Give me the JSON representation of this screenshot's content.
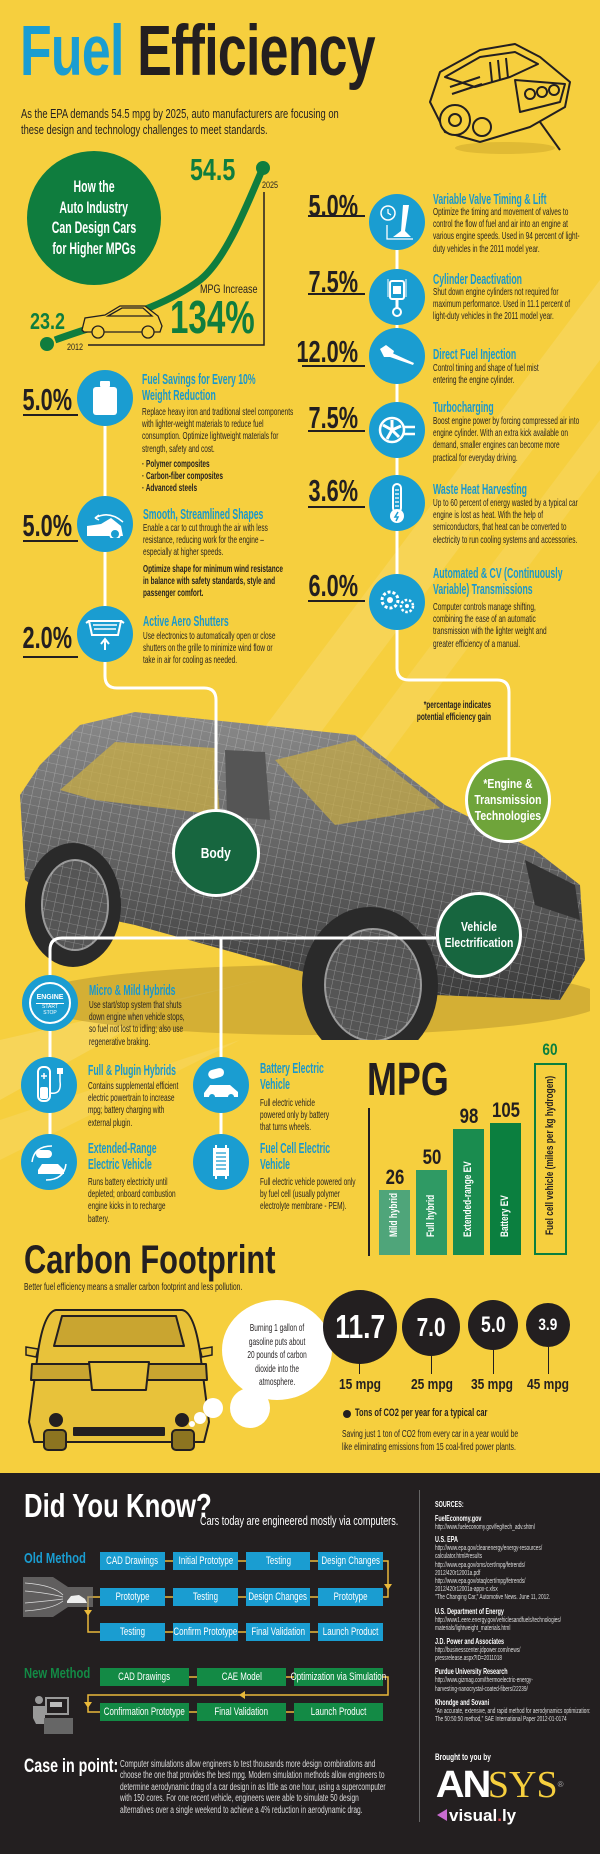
{
  "header": {
    "title_part1": "Fuel",
    "title_part2": "Efficiency",
    "subtitle": "As the EPA demands 54.5 mpg by 2025, auto manufacturers are focusing on these design and technology challenges to meet standards.",
    "engine_icon": "engine-icon"
  },
  "intro": {
    "circle_lines": [
      "How the",
      "Auto Industry",
      "Can Design Cars",
      "for Higher MPGs"
    ],
    "start_value": "23.2",
    "start_year": "2012",
    "end_value": "54.5",
    "end_year": "2025",
    "increase_label": "MPG Increase",
    "increase_value": "134%"
  },
  "left_tech": [
    {
      "percent": "5.0%",
      "title": "Fuel Savings for Every 10% Weight Reduction",
      "desc": "Replace heavy iron and traditional steel components with lighter-weight materials to reduce fuel consumption. Optimize lightweight materials for strength, safety and cost.",
      "bullets": [
        "· Polymer composites",
        "· Carbon-fiber composites",
        "· Advanced steels"
      ],
      "icon": "weight-icon"
    },
    {
      "percent": "5.0%",
      "title": "Smooth, Streamlined Shapes",
      "desc": "Enable a car to cut through the air with less resistance, reducing work for the engine – especially at higher speeds.",
      "note": "Optimize shape for minimum wind resistance in balance with safety standards, style and passenger comfort.",
      "icon": "aerodynamic-car-icon"
    },
    {
      "percent": "2.0%",
      "title": "Active Aero Shutters",
      "desc": "Use electronics to automatically open or close shutters on the grille to minimize wind flow or take in air for cooling as needed.",
      "icon": "grille-shutter-icon"
    }
  ],
  "right_tech": [
    {
      "percent": "5.0%",
      "title": "Variable Valve Timing & Lift",
      "desc": "Optimize the timing and movement of valves to control the flow of fuel and air into an engine at various engine speeds. Used in 94 percent of light-duty vehicles in the 2011 model year.",
      "icon": "valve-timer-icon"
    },
    {
      "percent": "7.5%",
      "title": "Cylinder Deactivation",
      "desc": "Shut down engine cylinders not required for maximum performance. Used in 11.1 percent of light-duty vehicles in the 2011 model year.",
      "icon": "piston-icon"
    },
    {
      "percent": "12.0%",
      "title": "Direct Fuel Injection",
      "desc": "Control timing and shape of fuel mist entering the engine cylinder.",
      "icon": "fuel-injector-icon"
    },
    {
      "percent": "7.5%",
      "title": "Turbocharging",
      "desc": "Boost engine power by forcing compressed air into engine cylinder. With an extra kick available on demand, smaller engines can become more practical for everyday driving.",
      "icon": "turbo-icon"
    },
    {
      "percent": "3.6%",
      "title": "Waste Heat Harvesting",
      "desc": "Up to 60 percent of energy wasted by a typical car engine is lost as heat. With the help of semiconductors, that heat can be converted to electricity to run cooling systems and accessories.",
      "icon": "thermometer-icon"
    },
    {
      "percent": "6.0%",
      "title": "Automated & CV (Continuously Variable) Transmissions",
      "desc": "Computer controls manage shifting, combining the ease of an automatic transmission with the lighter weight and greater efficiency of a manual.",
      "icon": "gears-icon"
    }
  ],
  "footnote": "*percentage indicates potential efficiency gain",
  "categories": {
    "body": "Body",
    "engine": "*Engine & Transmission Technologies",
    "electrification": "Vehicle Electrification"
  },
  "electrification": [
    {
      "title": "Micro & Mild Hybrids",
      "desc": "Use start/stop system that shuts down engine when vehicle stops, so fuel not lost to idling; also use regenerative braking.",
      "icon": "engine-start-stop-icon",
      "icon_text": [
        "ENGINE",
        "START",
        "STOP"
      ]
    },
    {
      "title": "Full & Plugin Hybrids",
      "desc": "Contains supplemental efficient electric powertrain to increase mpg; battery charging with external plugin.",
      "icon": "battery-plug-icon"
    },
    {
      "title": "Extended-Range Electric Vehicle",
      "desc": "Runs battery electricity until depleted; onboard combustion engine kicks in to recharge battery.",
      "icon": "battery-car-cycle-icon"
    },
    {
      "title": "Battery Electric Vehicle",
      "desc": "Full electric vehicle powered only by battery that turns wheels.",
      "icon": "battery-car-icon"
    },
    {
      "title": "Fuel Cell Electric Vehicle",
      "desc": "Full electric vehicle powered only by fuel cell (usually polymer electrolyte membrane - PEM).",
      "icon": "fuel-cell-icon"
    }
  ],
  "chart_data": {
    "type": "bar",
    "title": "MPG",
    "categories": [
      "Mild hybrid",
      "Full hybrid",
      "Extended-range EV",
      "Battery EV",
      "Fuel cell vehicle (miles per kg hydrogen)"
    ],
    "values": [
      26,
      50,
      98,
      105,
      60
    ],
    "value_labels": [
      "26",
      "50",
      "98",
      "105",
      "60"
    ],
    "bar_styles": [
      "filled",
      "filled",
      "filled",
      "filled",
      "outline"
    ],
    "colors": [
      "#4fa57a",
      "#2f9a64",
      "#1a8c4f",
      "#0b7f3f",
      "#0b7f3f"
    ],
    "grid": false,
    "legend": "none"
  },
  "carbon": {
    "title": "Carbon Footprint",
    "subtitle": "Better fuel efficiency means a smaller carbon footprint and less pollution.",
    "bubble": "Burning 1 gallon of gasoline puts about 20 pounds of carbon dioxide into the atmosphere.",
    "circles": [
      {
        "value": "11.7",
        "mpg": "15 mpg"
      },
      {
        "value": "7.0",
        "mpg": "25 mpg"
      },
      {
        "value": "5.0",
        "mpg": "35 mpg"
      },
      {
        "value": "3.9",
        "mpg": "45 mpg"
      }
    ],
    "legend": "Tons of CO2 per year for a typical car",
    "note": "Saving just 1 ton of CO2 from every car in a year would be like eliminating emissions from 15 coal-fired power plants."
  },
  "did_you_know": {
    "title": "Did You Know?",
    "subtitle": "Cars today are engineered mostly via computers.",
    "old_label": "Old Method",
    "old_steps": [
      [
        "CAD Drawings",
        "Initial Prototype",
        "Testing",
        "Design Changes"
      ],
      [
        "Prototype",
        "Testing",
        "Design Changes",
        "Prototype"
      ],
      [
        "Testing",
        "Confirm Prototype",
        "Final Validation",
        "Launch Product"
      ]
    ],
    "new_label": "New Method",
    "new_steps": [
      [
        "CAD Drawings",
        "CAE Model",
        "Optimization via Simulation"
      ],
      [
        "Confirmation Prototype",
        "Final Validation",
        "Launch Product"
      ]
    ]
  },
  "sources": {
    "heading": "SOURCES:",
    "groups": [
      {
        "name": "FuelEconomy.gov",
        "lines": [
          "http://www.fueleconomy.gov/feg/tech_adv.shtml"
        ]
      },
      {
        "name": "U.S. EPA",
        "lines": [
          "http://www.epa.gov/cleanenergy/energy-resources/",
          "calculator.html#results",
          "http://www.epa.gov/oms/cert/mpg/fetrends/",
          "2012/420r12001a.pdf",
          "http://www.epa.gov/otaq/cert/mpg/fetrends/",
          "2012/420r12001a-appx-c.xlsx",
          "\"The Changing Car,\" Automotive News. June 11, 2012."
        ]
      },
      {
        "name": "U.S. Department of Energy",
        "lines": [
          "http://www1.eere.energy.gov/vehiclesandfuels/technologies/",
          "materials/lightweight_materials.html"
        ]
      },
      {
        "name": "J.D. Power and Associates",
        "lines": [
          "http://businesscenter.jdpower.com/news/",
          "pressrelease.aspx?ID=2011018"
        ]
      },
      {
        "name": "Purdue University Research",
        "lines": [
          "http://www.gizmag.com/thermoelectric-energy-",
          "harvesting-nanocrystal-coated-fibers/22239/"
        ]
      },
      {
        "name": "Khondge and Sovani",
        "lines": [
          "\"An accurate, extensive, and rapid method for aerodynamics optimization:",
          "The 50:50:50 method,\" SAE International Paper 2012-01-0174"
        ]
      }
    ]
  },
  "case": {
    "label": "Case in point:",
    "text": "Computer simulations allow engineers to test thousands more design combinations and choose the one that provides the best mpg. Modern simulation methods allow engineers to determine aerodynamic drag of a car design in as little as one hour, using a supercomputer with 150 cores. For one recent vehicle, engineers were able to simulate 50 design alternatives over a single weekend to achieve a 4% reduction in aerodynamic drag."
  },
  "credits": {
    "brought": "Brought to you by",
    "ansys_logo": "ANSYS",
    "visually_logo": "visual.ly"
  },
  "colors": {
    "background": "#f6cf3e",
    "blue": "#1a9dd1",
    "green": "#0f7d3e",
    "light_green": "#6fa43a",
    "dark": "#231f20",
    "connector": "#e9b93a"
  }
}
